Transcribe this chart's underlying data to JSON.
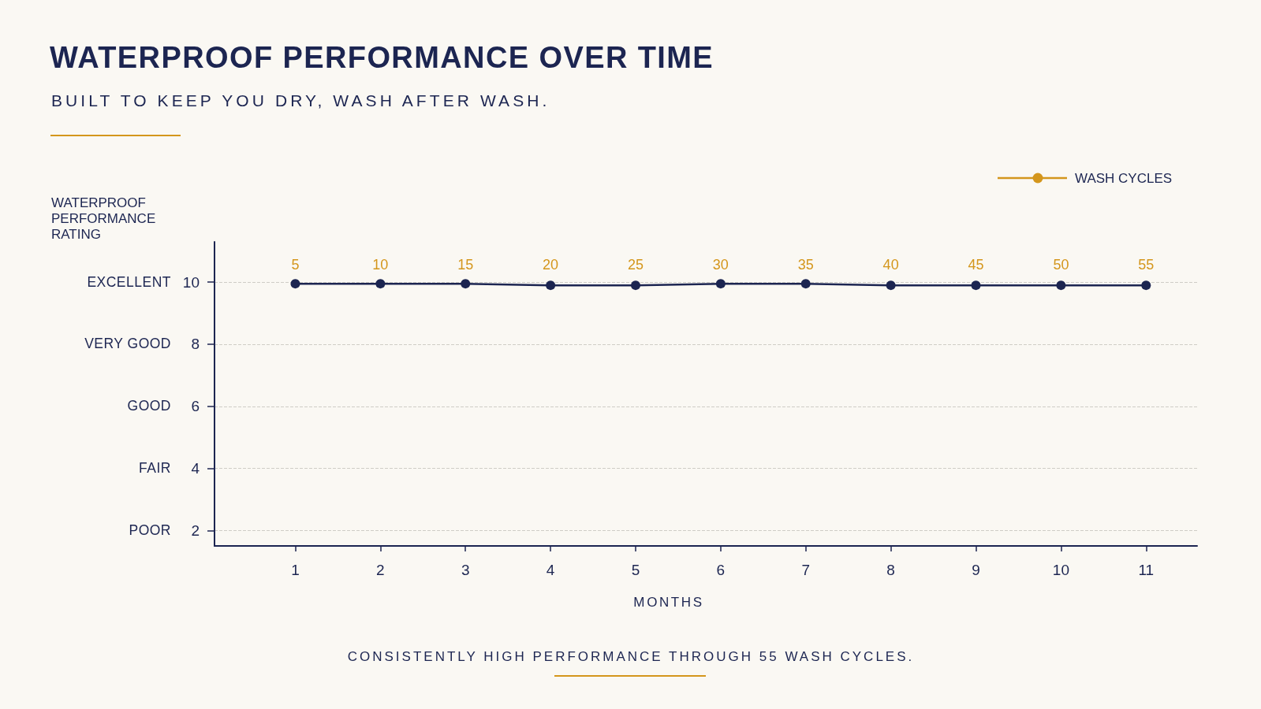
{
  "chart_data": {
    "type": "line",
    "title": "WATERPROOF PERFORMANCE OVER TIME",
    "subtitle": "BUILT TO KEEP YOU DRY, WASH AFTER WASH.",
    "xlabel": "MONTHS",
    "ylabel": "WATERPROOF PERFORMANCE RATING",
    "x2label": "WASH CYCLES",
    "annotations": [
      "EXCELLENT",
      "VERY GOOD",
      "GOOD",
      "FAIR",
      "POOR",
      "CONSISTENTLY HIGH PERFORMANCE THROUGH 55 WASH CYCLES."
    ],
    "x": [
      1,
      2,
      3,
      4,
      5,
      6,
      7,
      8,
      9,
      10,
      11
    ],
    "series": [
      {
        "color": "#1c2551",
        "values": [
          9.95,
          9.95,
          9.95,
          9.9,
          9.9,
          9.95,
          9.95,
          9.9,
          9.9,
          9.9,
          9.9
        ]
      }
    ],
    "xlim": [
      0.05,
      11.6
    ],
    "xticks": [
      1,
      2,
      3,
      4,
      5,
      6,
      7,
      8,
      9,
      10,
      11
    ],
    "x2lim": [
      0.25,
      58
    ],
    "x2ticks": [
      5,
      10,
      15,
      20,
      25,
      30,
      35,
      40,
      45,
      50,
      55
    ],
    "ylim": [
      1.5,
      11.3
    ],
    "yticks": [
      2,
      4,
      6,
      8,
      10
    ],
    "grid": "y",
    "marker": "circle",
    "line_style": "solid"
  }
}
